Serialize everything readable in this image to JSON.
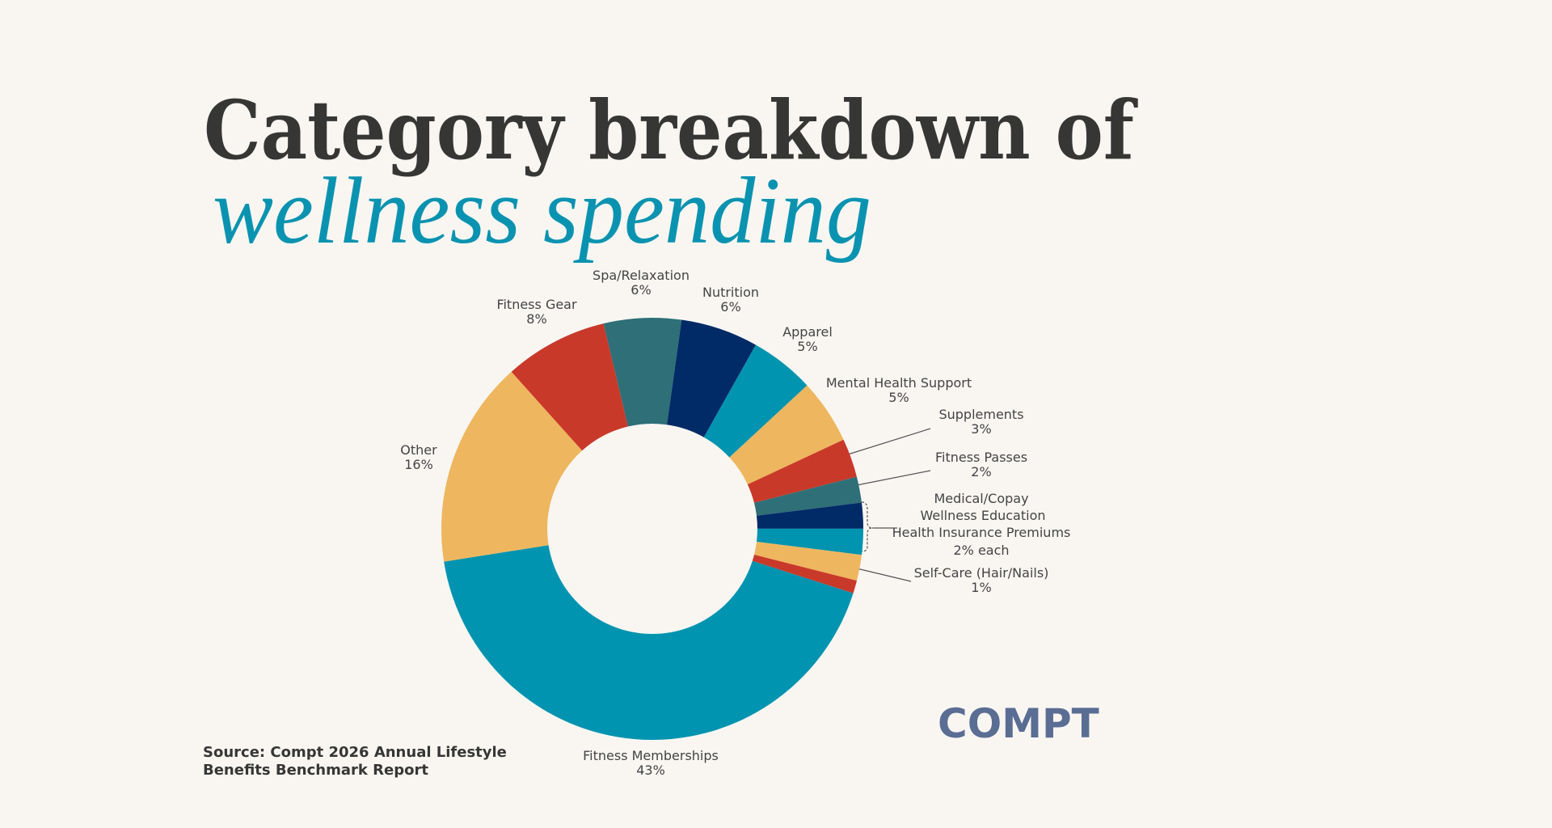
{
  "chart_data": {
    "type": "donut",
    "title": "Category breakdown of",
    "subtitle": "wellness spending",
    "categories": [
      "Spa/Relaxation",
      "Nutrition",
      "Apparel",
      "Mental Health Support",
      "Supplements",
      "Fitness Passes",
      "Medical/Copay",
      "Wellness Education",
      "Health Insurance Premiums",
      "Self-Care (Hair/Nails)",
      "Fitness Memberships",
      "Other",
      "Fitness Gear"
    ],
    "values": [
      6,
      6,
      5,
      5,
      3,
      2,
      2,
      2,
      2,
      1,
      43,
      16,
      8
    ],
    "value_labels": [
      "6%",
      "6%",
      "5%",
      "5%",
      "3%",
      "2%",
      null,
      null,
      null,
      "1%",
      "43%",
      "16%",
      "8%"
    ],
    "colors": [
      "#2e6f78",
      "#002b66",
      "#0094b0",
      "#eeb65e",
      "#c9392a",
      "#2e6f78",
      "#002b66",
      "#0094b0",
      "#eeb65e",
      "#c9392a",
      "#0094b0",
      "#eeb65e",
      "#c9392a"
    ],
    "group_label": "2% each",
    "source": "Source: Compt 2026 Annual Lifestyle Benefits Benchmark Report",
    "logo": "COMPT"
  }
}
